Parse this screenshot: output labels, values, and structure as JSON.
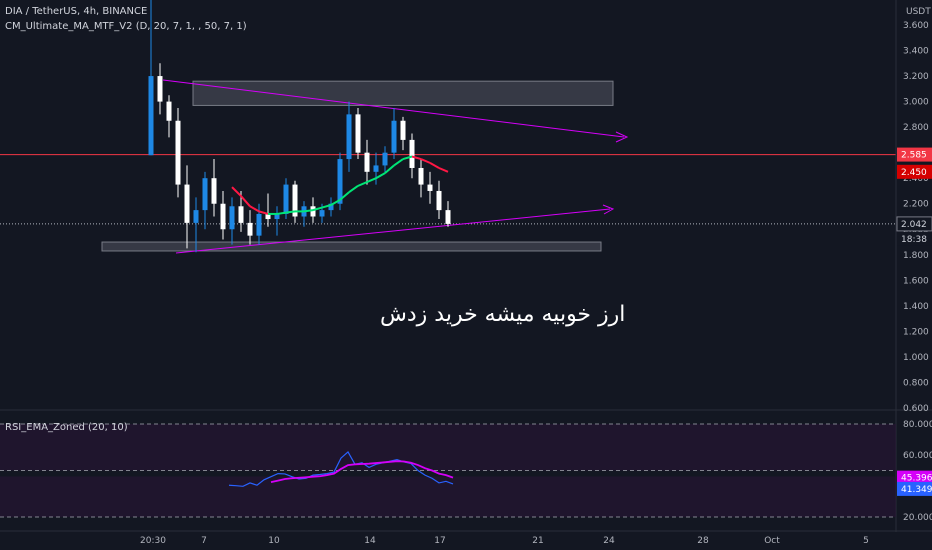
{
  "header": {
    "symbol_line": "DIA / TetherUS, 4h, BINANCE",
    "indicator_line": "CM_Ultimate_MA_MTF_V2 (D, 20, 7, 1, , 50, 7, 1)"
  },
  "rsi_panel": {
    "title": "RSI_EMA_Zoned (20, 10)"
  },
  "annotation": "ارز خوبیه میشه خرید زدش",
  "colors": {
    "background": "#131722",
    "up_candle": "#1e88e5",
    "down_candle": "#ffffff",
    "trendline": "#d500f9",
    "resistance_line": "#f23645",
    "ma_up": "#00e676",
    "ma_down": "#ff1744",
    "rsi_line": "#2962ff",
    "rsi_ema": "#d500f9"
  },
  "chart_data": [
    {
      "type": "candlestick",
      "currency_label": "USDT",
      "y_ticks": [
        "3.600",
        "3.400",
        "3.200",
        "3.000",
        "2.800",
        "2.600",
        "2.400",
        "2.200",
        "2.000",
        "1.800",
        "1.600",
        "1.400",
        "1.200",
        "1.000",
        "0.800",
        "0.600"
      ],
      "ylim": [
        0.6,
        3.75
      ],
      "x_ticks": [
        "20:30",
        "7",
        "10",
        "14",
        "17",
        "21",
        "24",
        "28",
        "Oct",
        "5"
      ],
      "price_labels": {
        "resistance": "2.585",
        "ma": "2.450",
        "last": "2.042",
        "countdown": "18:38"
      },
      "resistance_level": 2.585,
      "last_price": 2.042,
      "zones": [
        {
          "y_top": 3.16,
          "y_bottom": 2.97,
          "label": "resistance box"
        },
        {
          "y_top": 1.9,
          "y_bottom": 1.83,
          "label": "support box"
        }
      ],
      "candles": [
        {
          "o": 2.58,
          "h": 4.5,
          "l": 2.58,
          "c": 3.2
        },
        {
          "o": 3.2,
          "h": 3.3,
          "l": 2.9,
          "c": 3.0
        },
        {
          "o": 3.0,
          "h": 3.05,
          "l": 2.72,
          "c": 2.85
        },
        {
          "o": 2.85,
          "h": 2.95,
          "l": 2.25,
          "c": 2.35
        },
        {
          "o": 2.35,
          "h": 2.5,
          "l": 1.85,
          "c": 2.05
        },
        {
          "o": 2.05,
          "h": 2.25,
          "l": 1.82,
          "c": 2.15
        },
        {
          "o": 2.15,
          "h": 2.45,
          "l": 2.0,
          "c": 2.4
        },
        {
          "o": 2.4,
          "h": 2.55,
          "l": 2.1,
          "c": 2.2
        },
        {
          "o": 2.2,
          "h": 2.3,
          "l": 1.92,
          "c": 2.0
        },
        {
          "o": 2.0,
          "h": 2.25,
          "l": 1.88,
          "c": 2.18
        },
        {
          "o": 2.18,
          "h": 2.3,
          "l": 1.98,
          "c": 2.05
        },
        {
          "o": 2.05,
          "h": 2.15,
          "l": 1.88,
          "c": 1.95
        },
        {
          "o": 1.95,
          "h": 2.2,
          "l": 1.88,
          "c": 2.12
        },
        {
          "o": 2.12,
          "h": 2.28,
          "l": 2.02,
          "c": 2.08
        },
        {
          "o": 2.08,
          "h": 2.18,
          "l": 1.95,
          "c": 2.12
        },
        {
          "o": 2.12,
          "h": 2.4,
          "l": 2.08,
          "c": 2.35
        },
        {
          "o": 2.35,
          "h": 2.38,
          "l": 2.05,
          "c": 2.1
        },
        {
          "o": 2.1,
          "h": 2.22,
          "l": 2.02,
          "c": 2.18
        },
        {
          "o": 2.18,
          "h": 2.25,
          "l": 2.05,
          "c": 2.1
        },
        {
          "o": 2.1,
          "h": 2.2,
          "l": 2.05,
          "c": 2.15
        },
        {
          "o": 2.15,
          "h": 2.25,
          "l": 2.1,
          "c": 2.2
        },
        {
          "o": 2.2,
          "h": 2.6,
          "l": 2.15,
          "c": 2.55
        },
        {
          "o": 2.55,
          "h": 3.0,
          "l": 2.45,
          "c": 2.9
        },
        {
          "o": 2.9,
          "h": 2.95,
          "l": 2.55,
          "c": 2.6
        },
        {
          "o": 2.6,
          "h": 2.7,
          "l": 2.35,
          "c": 2.45
        },
        {
          "o": 2.45,
          "h": 2.6,
          "l": 2.35,
          "c": 2.5
        },
        {
          "o": 2.5,
          "h": 2.65,
          "l": 2.45,
          "c": 2.6
        },
        {
          "o": 2.6,
          "h": 2.95,
          "l": 2.55,
          "c": 2.85
        },
        {
          "o": 2.85,
          "h": 2.88,
          "l": 2.62,
          "c": 2.7
        },
        {
          "o": 2.7,
          "h": 2.75,
          "l": 2.4,
          "c": 2.48
        },
        {
          "o": 2.48,
          "h": 2.55,
          "l": 2.25,
          "c": 2.35
        },
        {
          "o": 2.35,
          "h": 2.45,
          "l": 2.2,
          "c": 2.3
        },
        {
          "o": 2.3,
          "h": 2.38,
          "l": 2.08,
          "c": 2.15
        },
        {
          "o": 2.15,
          "h": 2.22,
          "l": 2.02,
          "c": 2.042
        }
      ],
      "ma": [
        {
          "i": 9,
          "v": 2.33
        },
        {
          "i": 10,
          "v": 2.26
        },
        {
          "i": 11,
          "v": 2.18
        },
        {
          "i": 12,
          "v": 2.14
        },
        {
          "i": 13,
          "v": 2.12
        },
        {
          "i": 14,
          "v": 2.12
        },
        {
          "i": 15,
          "v": 2.13
        },
        {
          "i": 16,
          "v": 2.14
        },
        {
          "i": 17,
          "v": 2.14
        },
        {
          "i": 18,
          "v": 2.15
        },
        {
          "i": 19,
          "v": 2.17
        },
        {
          "i": 20,
          "v": 2.19
        },
        {
          "i": 21,
          "v": 2.23
        },
        {
          "i": 22,
          "v": 2.29
        },
        {
          "i": 23,
          "v": 2.34
        },
        {
          "i": 24,
          "v": 2.37
        },
        {
          "i": 25,
          "v": 2.4
        },
        {
          "i": 26,
          "v": 2.44
        },
        {
          "i": 27,
          "v": 2.5
        },
        {
          "i": 28,
          "v": 2.55
        },
        {
          "i": 29,
          "v": 2.57
        },
        {
          "i": 30,
          "v": 2.55
        },
        {
          "i": 31,
          "v": 2.52
        },
        {
          "i": 32,
          "v": 2.48
        },
        {
          "i": 33,
          "v": 2.45
        }
      ]
    },
    {
      "type": "line",
      "title": "RSI_EMA_Zoned (20, 10)",
      "y_ticks": [
        "80.000",
        "60.000",
        "20.000"
      ],
      "ylim": [
        15,
        85
      ],
      "levels": [
        80,
        50,
        20
      ],
      "value_labels": {
        "ema": "45.396",
        "rsi": "41.349"
      },
      "series": [
        {
          "name": "rsi",
          "values": [
            40.5,
            40.2,
            39.8,
            42,
            40.5,
            44,
            46,
            48,
            47.8,
            46,
            44.5,
            45,
            47,
            47.4,
            48,
            49,
            58,
            62,
            54,
            55,
            52,
            54,
            55,
            56,
            57,
            55.5,
            54.5,
            50,
            47,
            45,
            42,
            43,
            41.349
          ]
        },
        {
          "name": "ema",
          "values": [
            null,
            null,
            null,
            null,
            null,
            null,
            42.5,
            43.5,
            44.5,
            45,
            45.3,
            45.6,
            46,
            46.3,
            47,
            48,
            51,
            53.5,
            54,
            54.2,
            54.4,
            54.8,
            55.2,
            55.6,
            56,
            55.8,
            55,
            53.5,
            51.5,
            50,
            48,
            47,
            45.396
          ]
        }
      ]
    }
  ]
}
